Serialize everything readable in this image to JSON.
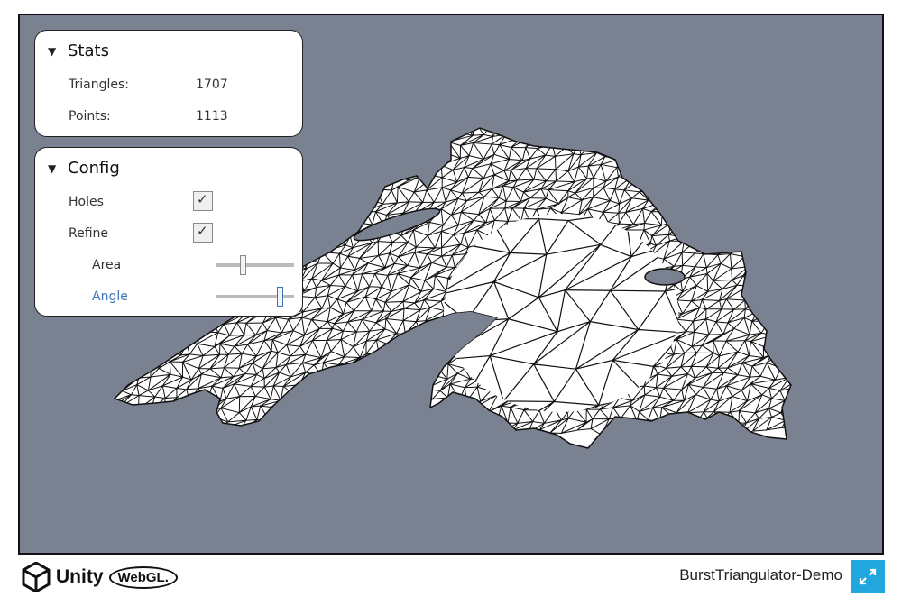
{
  "stats": {
    "title": "Stats",
    "triangles_label": "Triangles:",
    "triangles_value": "1707",
    "points_label": "Points:",
    "points_value": "1113"
  },
  "config": {
    "title": "Config",
    "holes_label": "Holes",
    "holes_checked": true,
    "refine_label": "Refine",
    "refine_checked": true,
    "area_label": "Area",
    "area_value": 0.33,
    "angle_label": "Angle",
    "angle_value": 0.85,
    "accent_color": "#3d76b8"
  },
  "footer": {
    "unity_text": "Unity",
    "webgl_text": "WebGL.",
    "app_title": "BurstTriangulator-Demo",
    "fullscreen_icon": "expand-icon",
    "fullscreen_color": "#21a7dd"
  },
  "colors": {
    "canvas_bg": "#7a8292",
    "mesh_fill": "#ffffff",
    "mesh_stroke": "#111111"
  }
}
